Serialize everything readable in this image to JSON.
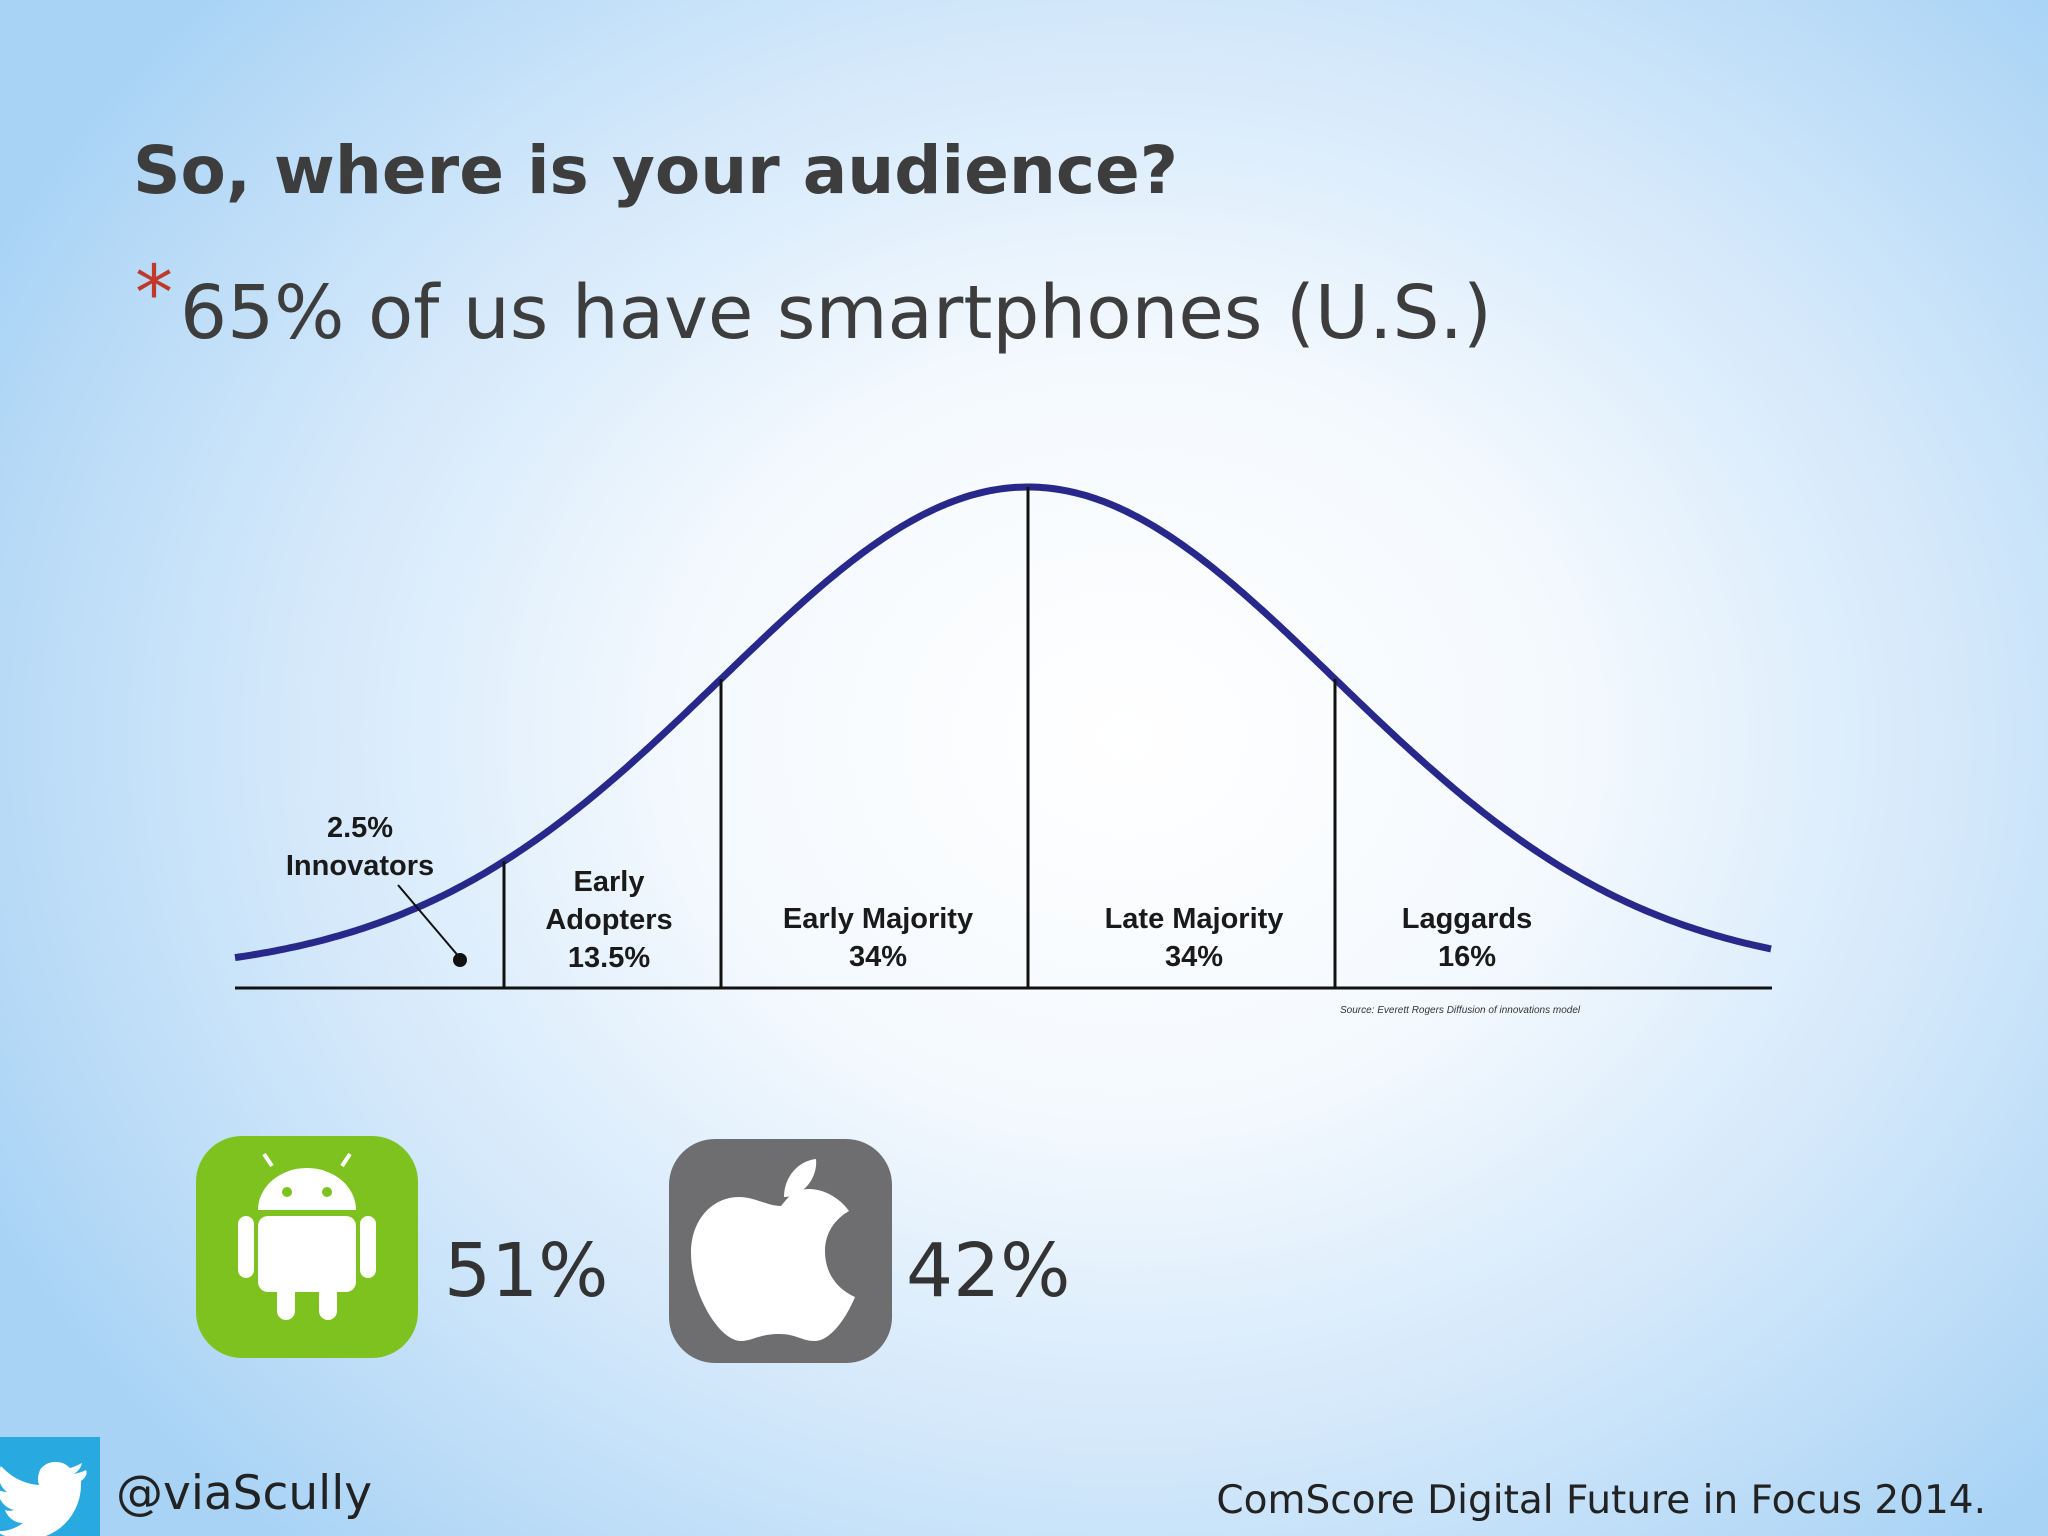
{
  "slide": {
    "title": "So, where is your audience?",
    "bullet": "65% of us have smartphones (U.S.)",
    "diagram": {
      "segments": [
        {
          "name": "Innovators",
          "share": "2.5%"
        },
        {
          "name": "Early Adopters",
          "share": "13.5%"
        },
        {
          "name": "Early Majority",
          "share": "34%"
        },
        {
          "name": "Late Majority",
          "share": "34%"
        },
        {
          "name": "Laggards",
          "share": "16%"
        }
      ],
      "source": "Source: Everett Rogers Diffusion of innovations model"
    },
    "platform_shares": [
      "51%",
      "42%"
    ],
    "handle": "@viaScully",
    "citation": "ComScore Digital Future in Focus 2014."
  }
}
